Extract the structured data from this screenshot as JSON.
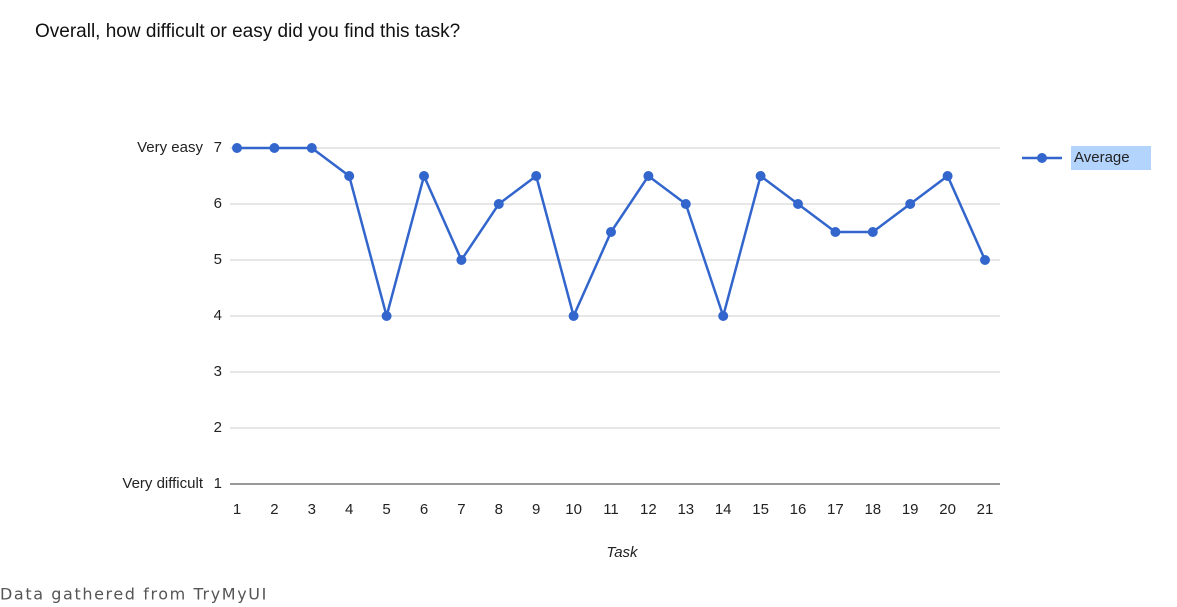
{
  "chart_data": {
    "type": "line",
    "title": "Overall, how difficult or easy did you find this task?",
    "xlabel": "Task",
    "ylabel_top": "Very easy",
    "ylabel_bottom": "Very difficult",
    "categories": [
      "1",
      "2",
      "3",
      "4",
      "5",
      "6",
      "7",
      "8",
      "9",
      "10",
      "11",
      "12",
      "13",
      "14",
      "15",
      "16",
      "17",
      "18",
      "19",
      "20",
      "21"
    ],
    "series": [
      {
        "name": "Average",
        "color": "#3366cc",
        "values": [
          7,
          7,
          7,
          6.5,
          4,
          6.5,
          5,
          6,
          6.5,
          4,
          5.5,
          6.5,
          6,
          4,
          6.5,
          6,
          5.5,
          5.5,
          6,
          6.5,
          5
        ]
      }
    ],
    "ylim": [
      1,
      7
    ],
    "yticks": [
      1,
      2,
      3,
      4,
      5,
      6,
      7
    ],
    "grid": true,
    "legend": "right",
    "source": "Data gathered from TryMyUI"
  }
}
